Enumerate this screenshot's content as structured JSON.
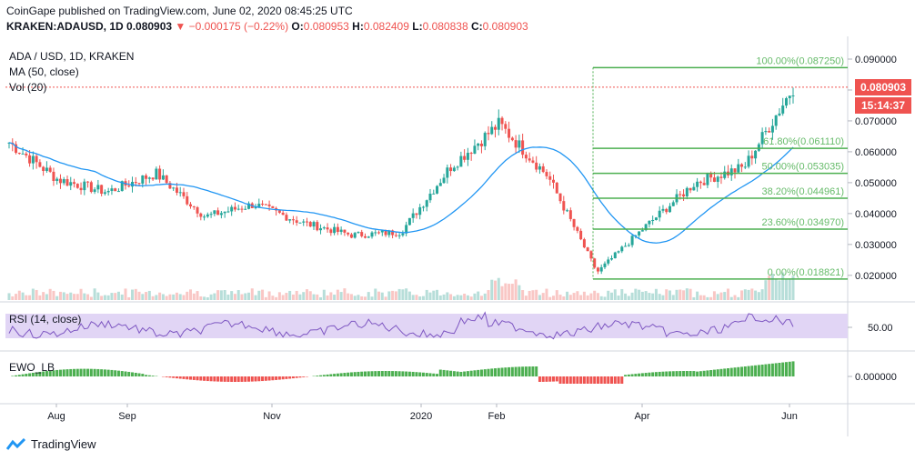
{
  "header": {
    "published": "CoinGape published on TradingView.com, June 02, 2020 08:45:25 UTC",
    "symbol": "KRAKEN:ADAUSD, 1D",
    "price": "0.080903",
    "change_arrow": "▼",
    "change": "−0.000175 (−0.22%)",
    "o_label": "O:",
    "o_value": "0.080953",
    "h_label": "H:",
    "h_value": "0.082409",
    "l_label": "L:",
    "l_value": "0.080838",
    "c_label": "C:",
    "c_value": "0.080903"
  },
  "legend": {
    "title": "ADA / USD, 1D, KRAKEN",
    "ma": "MA (50, close)",
    "vol": "Vol (20)",
    "rsi": "RSI (14, close)",
    "ewo": "EWO_LB"
  },
  "price_tags": {
    "last": "0.080903",
    "countdown": "15:14:37"
  },
  "footer": {
    "brand": "TradingView"
  },
  "colors": {
    "up": "#26a69a",
    "down": "#ef5350",
    "ma": "#2196f3",
    "fib": "#4caf50",
    "fib_text": "#66bb6a",
    "rsi": "#7e57c2",
    "rsi_band": "#e1d5f5",
    "ewo_pos": "#4caf50",
    "ewo_neg": "#ef5350",
    "price_line": "#ef5350"
  },
  "chart_data": {
    "type": "candlestick",
    "title": "ADA / USD, 1D, KRAKEN",
    "price_axis": {
      "min": 0.012,
      "max": 0.095,
      "ticks": [
        "0.090000",
        "0.080000",
        "0.070000",
        "0.060000",
        "0.050000",
        "0.040000",
        "0.030000",
        "0.020000"
      ]
    },
    "time_axis": [
      "Aug",
      "Sep",
      "Nov",
      "2020",
      "Feb",
      "Apr",
      "Jun"
    ],
    "key_points": [
      {
        "date": "Jul 2019",
        "close": 0.063
      },
      {
        "date": "Aug 2019",
        "close": 0.051
      },
      {
        "date": "Sep 2019",
        "close": 0.047
      },
      {
        "date": "Sep 2019",
        "close": 0.053
      },
      {
        "date": "Oct 2019",
        "close": 0.039
      },
      {
        "date": "Nov 2019",
        "close": 0.043
      },
      {
        "date": "Dec 2019",
        "close": 0.037
      },
      {
        "date": "Dec 2019",
        "close": 0.033
      },
      {
        "date": "Jan 2020",
        "close": 0.034
      },
      {
        "date": "Feb 2020",
        "close": 0.055
      },
      {
        "date": "Feb 2020",
        "close": 0.069
      },
      {
        "date": "Mar 2020",
        "close": 0.052
      },
      {
        "date": "Mar 2020",
        "close": 0.021
      },
      {
        "date": "Apr 2020",
        "close": 0.036
      },
      {
        "date": "May 2020",
        "close": 0.05
      },
      {
        "date": "May 2020",
        "close": 0.055
      },
      {
        "date": "Jun 2020",
        "close": 0.0809
      }
    ],
    "fib_levels": [
      {
        "label": "100.00%(0.087250)",
        "value": 0.08725
      },
      {
        "label": "61.80%(0.061110)",
        "value": 0.06111
      },
      {
        "label": "50.00%(0.053035)",
        "value": 0.053035
      },
      {
        "label": "38.20%(0.044961)",
        "value": 0.044961
      },
      {
        "label": "23.60%(0.034970)",
        "value": 0.03497
      },
      {
        "label": "0.00%(0.018821)",
        "value": 0.018821
      }
    ],
    "rsi": {
      "axis_tick": "50.00"
    },
    "ewo": {
      "axis_tick": "0.000000"
    }
  }
}
